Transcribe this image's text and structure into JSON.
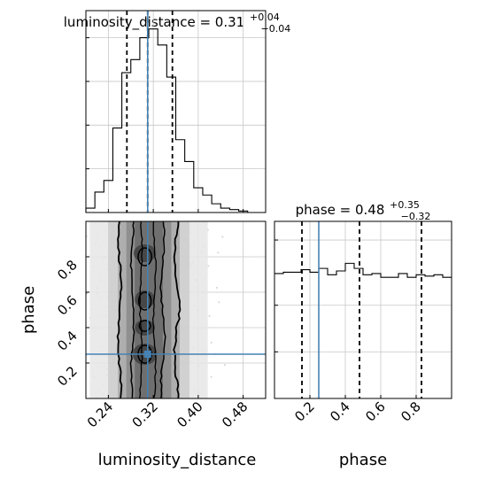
{
  "chart_data": {
    "type": "corner",
    "truth_color": "#4682b4",
    "parameters": [
      {
        "name": "luminosity_distance",
        "xlabel": "luminosity_distance",
        "range": [
          0.2,
          0.52
        ],
        "ticks": [
          0.24,
          0.32,
          0.4,
          0.48
        ],
        "tick_labels": [
          "0.24",
          "0.32",
          "0.40",
          "0.48"
        ],
        "truth": 0.31,
        "quantiles": [
          0.273,
          0.31,
          0.354
        ],
        "title": {
          "text": "luminosity_distance = 0.31",
          "plus": "+0.04",
          "minus": "−0.04"
        },
        "hist": {
          "bin_edges": [
            0.2,
            0.216,
            0.232,
            0.248,
            0.264,
            0.28,
            0.296,
            0.312,
            0.328,
            0.344,
            0.36,
            0.376,
            0.392,
            0.408,
            0.424,
            0.44,
            0.456,
            0.472,
            0.488,
            0.504,
            0.52
          ],
          "counts": [
            3,
            14,
            22,
            58,
            96,
            105,
            120,
            126,
            115,
            93,
            50,
            35,
            17,
            12,
            6,
            3,
            2,
            1,
            0,
            0
          ]
        }
      },
      {
        "name": "phase",
        "xlabel": "phase",
        "ylabel": "phase",
        "range": [
          0.0,
          1.0
        ],
        "ticks": [
          0.2,
          0.4,
          0.6,
          0.8
        ],
        "tick_labels": [
          "0.2",
          "0.4",
          "0.6",
          "0.8"
        ],
        "truth": 0.25,
        "quantiles": [
          0.155,
          0.48,
          0.83
        ],
        "title": {
          "text": "phase = 0.48",
          "plus": "+0.35",
          "minus": "−0.32"
        },
        "hist": {
          "bin_edges": [
            0.0,
            0.05,
            0.1,
            0.15,
            0.2,
            0.25,
            0.3,
            0.35,
            0.4,
            0.45,
            0.5,
            0.55,
            0.6,
            0.65,
            0.7,
            0.75,
            0.8,
            0.85,
            0.9,
            0.95,
            1.0
          ],
          "counts": [
            98,
            99,
            99,
            101,
            99,
            102,
            97,
            100,
            106,
            102,
            97,
            98,
            95,
            95,
            98,
            95,
            97,
            96,
            97,
            95
          ]
        }
      }
    ],
    "grid": true
  }
}
